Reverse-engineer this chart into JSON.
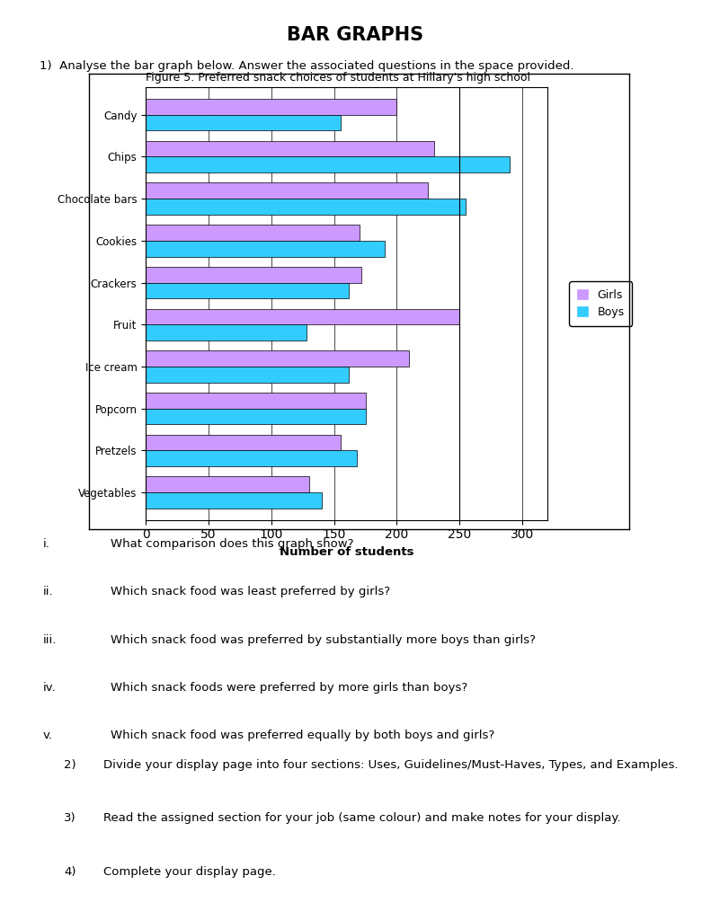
{
  "title": "BAR GRAPHS",
  "chart_title": "Figure 5. Preferred snack choices of students at Hillary's high school",
  "categories": [
    "Candy",
    "Chips",
    "Chocolate bars",
    "Cookies",
    "Crackers",
    "Fruit",
    "Ice cream",
    "Popcorn",
    "Pretzels",
    "Vegetables"
  ],
  "girls_values": [
    200,
    230,
    225,
    170,
    172,
    250,
    210,
    175,
    155,
    130
  ],
  "boys_values": [
    155,
    290,
    255,
    190,
    162,
    128,
    162,
    175,
    168,
    140
  ],
  "girls_color": "#cc99ff",
  "boys_color": "#33ccff",
  "xlabel": "Number of students",
  "xlim": [
    0,
    320
  ],
  "xticks": [
    0,
    50,
    100,
    150,
    200,
    250,
    300
  ],
  "background_color": "#ffffff",
  "question1": "1)  Analyse the bar graph below. Answer the associated questions in the space provided.",
  "q_items": [
    [
      "i.",
      "What comparison does this graph show?"
    ],
    [
      "ii.",
      "Which snack food was least preferred by girls?"
    ],
    [
      "iii.",
      "Which snack food was preferred by substantially more boys than girls?"
    ],
    [
      "iv.",
      "Which snack foods were preferred by more girls than boys?"
    ],
    [
      "v.",
      "Which snack food was preferred equally by both boys and girls?"
    ]
  ],
  "bottom_questions": [
    [
      "2)",
      "Divide your display page into four sections: Uses, Guidelines/Must-Haves, Types, and Examples."
    ],
    [
      "3)",
      "Read the assigned section for your job (same colour) and make notes for your display."
    ],
    [
      "4)",
      "Complete your display page."
    ]
  ]
}
